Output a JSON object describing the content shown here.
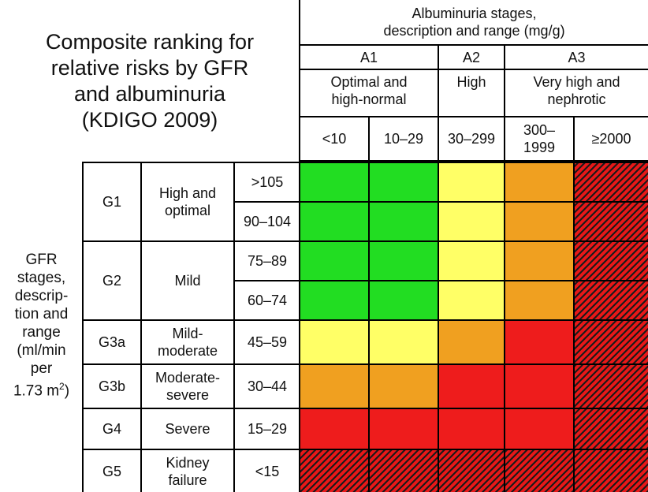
{
  "title": "Composite ranking for\nrelative risks by GFR\nand albuminuria\n(KDIGO 2009)",
  "albuminuria_header": "Albuminuria stages,\ndescription and range (mg/g)",
  "albuminuria_stages": [
    {
      "stage": "A1",
      "description": "Optimal and\nhigh-normal",
      "ranges": [
        "<10",
        "10–29"
      ]
    },
    {
      "stage": "A2",
      "description": "High",
      "ranges": [
        "30–299"
      ]
    },
    {
      "stage": "A3",
      "description": "Very high and\nnephrotic",
      "ranges": [
        "300–\n1999",
        "≥2000"
      ]
    }
  ],
  "gfr_header": {
    "text": "GFR\nstages,\ndescrip-\ntion and\nrange\n(ml/min\nper\n1.73 m",
    "superscript": "2",
    "suffix": ")"
  },
  "gfr_stages": [
    {
      "stage": "G1",
      "description": "High and\noptimal",
      "ranges": [
        ">105",
        "90–104"
      ]
    },
    {
      "stage": "G2",
      "description": "Mild",
      "ranges": [
        "75–89",
        "60–74"
      ]
    },
    {
      "stage": "G3a",
      "description": "Mild-\nmoderate",
      "ranges": [
        "45–59"
      ]
    },
    {
      "stage": "G3b",
      "description": "Moderate-\nsevere",
      "ranges": [
        "30–44"
      ]
    },
    {
      "stage": "G4",
      "description": "Severe",
      "ranges": [
        "15–29"
      ]
    },
    {
      "stage": "G5",
      "description": "Kidney\nfailure",
      "ranges": [
        "<15"
      ]
    }
  ],
  "risk_colors": {
    "green": "#22dd22",
    "yellow": "#ffff66",
    "orange": "#f0a020",
    "red": "#ee1c1c",
    "hatch": "#e81818"
  },
  "risk_grid": [
    [
      "green",
      "green",
      "yellow",
      "orange",
      "hatch"
    ],
    [
      "green",
      "green",
      "yellow",
      "orange",
      "hatch"
    ],
    [
      "green",
      "green",
      "yellow",
      "orange",
      "hatch"
    ],
    [
      "green",
      "green",
      "yellow",
      "orange",
      "hatch"
    ],
    [
      "yellow",
      "yellow",
      "orange",
      "red",
      "hatch"
    ],
    [
      "orange",
      "orange",
      "red",
      "red",
      "hatch"
    ],
    [
      "red",
      "red",
      "red",
      "red",
      "hatch"
    ],
    [
      "hatch",
      "hatch",
      "hatch",
      "hatch",
      "hatch"
    ]
  ]
}
